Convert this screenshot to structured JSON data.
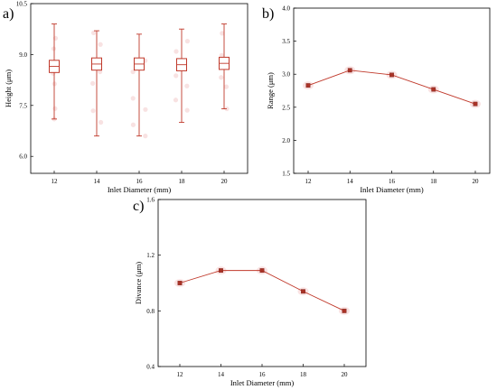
{
  "chart_data": [
    {
      "panel": "a)",
      "type": "box",
      "xlabel": "Inlet Diameter (mm)",
      "ylabel": "Height (μm)",
      "ylim": [
        5.5,
        10.5
      ],
      "yticks": [
        "6.0",
        "7.5",
        "9.0",
        "10.5"
      ],
      "yticks_values": [
        6.0,
        7.5,
        9.0,
        10.5
      ],
      "categories": [
        "12",
        "14",
        "16",
        "18",
        "20"
      ],
      "boxes": [
        {
          "min": 7.1,
          "q1": 8.55,
          "median": 8.65,
          "q3": 8.75,
          "max": 9.9
        },
        {
          "min": 6.6,
          "q1": 8.62,
          "median": 8.72,
          "q3": 8.82,
          "max": 9.7
        },
        {
          "min": 6.6,
          "q1": 8.62,
          "median": 8.72,
          "q3": 8.82,
          "max": 9.6
        },
        {
          "min": 7.0,
          "q1": 8.6,
          "median": 8.7,
          "q3": 8.8,
          "max": 9.75
        },
        {
          "min": 7.4,
          "q1": 8.64,
          "median": 8.74,
          "q3": 8.84,
          "max": 9.9
        }
      ],
      "grid": false,
      "series_color": "#c0392b"
    },
    {
      "panel": "b)",
      "type": "line",
      "xlabel": "Inlet Diameter (mm)",
      "ylabel": "Range (μm)",
      "ylim": [
        1.5,
        4.0
      ],
      "yticks": [
        "1.5",
        "2.0",
        "2.5",
        "3.0",
        "3.5",
        "4.0"
      ],
      "yticks_values": [
        1.5,
        2.0,
        2.5,
        3.0,
        3.5,
        4.0
      ],
      "categories": [
        "12",
        "14",
        "16",
        "18",
        "20"
      ],
      "values": [
        2.83,
        3.06,
        2.99,
        2.77,
        2.55
      ],
      "grid": false,
      "series_color": "#c0392b"
    },
    {
      "panel": "c)",
      "type": "line",
      "xlabel": "Inlet Diameter (mm)",
      "ylabel": "Divance (μm)",
      "ylim": [
        0.4,
        1.6
      ],
      "yticks": [
        "0.4",
        "0.8",
        "1.2",
        "1.6"
      ],
      "yticks_values": [
        0.4,
        0.8,
        1.2,
        1.6
      ],
      "categories": [
        "12",
        "14",
        "16",
        "18",
        "20"
      ],
      "values": [
        1.0,
        1.09,
        1.09,
        0.94,
        0.8
      ],
      "grid": false,
      "series_color": "#c0392b"
    }
  ]
}
